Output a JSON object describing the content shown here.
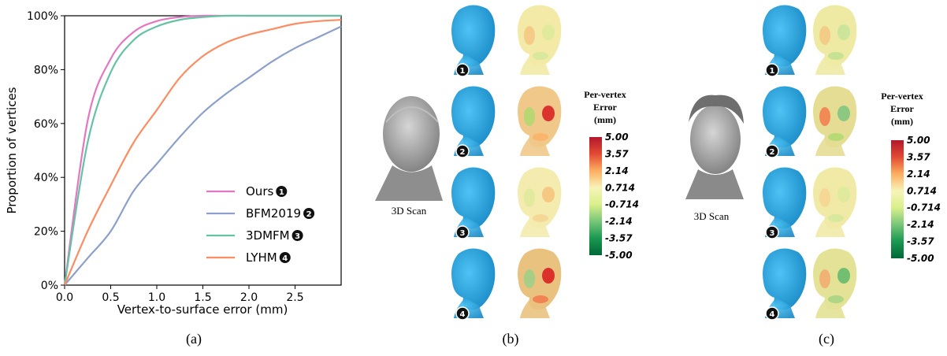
{
  "chart_data": {
    "type": "line",
    "title": "",
    "xlabel": "Vertex-to-surface error (mm)",
    "ylabel": "Proportion of vertices",
    "xlim": [
      0,
      3
    ],
    "ylim": [
      0,
      100
    ],
    "x_ticks": [
      "0.0",
      "0.5",
      "1.0",
      "1.5",
      "2.0",
      "2.5"
    ],
    "y_ticks": [
      "0%",
      "20%",
      "40%",
      "60%",
      "80%",
      "100%"
    ],
    "grid": false,
    "legend_position": "bottom-right",
    "x": [
      0,
      0.25,
      0.5,
      0.75,
      1.0,
      1.25,
      1.5,
      1.75,
      2.0,
      2.25,
      2.5,
      2.75,
      3.0
    ],
    "series": [
      {
        "name": "Ours",
        "badge": "1",
        "color": "#e377c2",
        "values": [
          0,
          61,
          84,
          94,
          98,
          99.5,
          100,
          100,
          100,
          100,
          100,
          100,
          100
        ]
      },
      {
        "name": "BFM2019",
        "badge": "2",
        "color": "#8da0cb",
        "values": [
          0,
          10,
          20,
          35,
          45,
          55,
          64,
          71,
          77,
          83,
          88,
          92,
          96
        ]
      },
      {
        "name": "3DMFM",
        "badge": "3",
        "color": "#66c2a5",
        "values": [
          0,
          53,
          79,
          91,
          96,
          98.5,
          99.5,
          100,
          100,
          100,
          100,
          100,
          100
        ]
      },
      {
        "name": "LYHM",
        "badge": "4",
        "color": "#fc8d62",
        "values": [
          0,
          20,
          37,
          53,
          65,
          77,
          85,
          90,
          93,
          95,
          97,
          98,
          98.5
        ]
      }
    ]
  },
  "panels": {
    "a_label": "(a)",
    "b_label": "(b)",
    "c_label": "(c)",
    "scan_label": "3D Scan",
    "colorbar_title_line1": "Per-vertex",
    "colorbar_title_line2": "Error",
    "colorbar_title_line3": "(mm)",
    "colorbar_ticks": [
      "5.00",
      "3.57",
      "2.14",
      "0.714",
      "-0.714",
      "-2.14",
      "-3.57",
      "-5.00"
    ],
    "colorbar_colors": [
      "#b2182b",
      "#e34a33",
      "#fdae61",
      "#f7f4b9",
      "#d9ef8b",
      "#78c679",
      "#1a9850",
      "#006837"
    ],
    "face_color": "#2aa4e0",
    "scan_color": "#9a9a9a",
    "row_badges": [
      "1",
      "2",
      "3",
      "4"
    ],
    "b_heatmaps": [
      {
        "base": "#f2eaa6",
        "spots": [
          "#dcea9a",
          "#f4c27d",
          "#cfe79a"
        ]
      },
      {
        "base": "#f0c98a",
        "spots": [
          "#d7191c",
          "#a6d96a",
          "#fdae61"
        ]
      },
      {
        "base": "#f3ecae",
        "spots": [
          "#f4c27d",
          "#dcea9a",
          "#f5d090"
        ]
      },
      {
        "base": "#e9c27f",
        "spots": [
          "#d7191c",
          "#8fd18a",
          "#f46d43"
        ]
      }
    ],
    "c_heatmaps": [
      {
        "base": "#eeeaa4",
        "spots": [
          "#c7e39a",
          "#f4c27d",
          "#b9df8e"
        ]
      },
      {
        "base": "#e6dd94",
        "spots": [
          "#7bc47f",
          "#f46d43",
          "#a6d96a"
        ]
      },
      {
        "base": "#f1eaa7",
        "spots": [
          "#dcea9a",
          "#f5d090",
          "#cfe79a"
        ]
      },
      {
        "base": "#e3e296",
        "spots": [
          "#5fb86b",
          "#f4a36a",
          "#9cd27f"
        ]
      }
    ]
  }
}
